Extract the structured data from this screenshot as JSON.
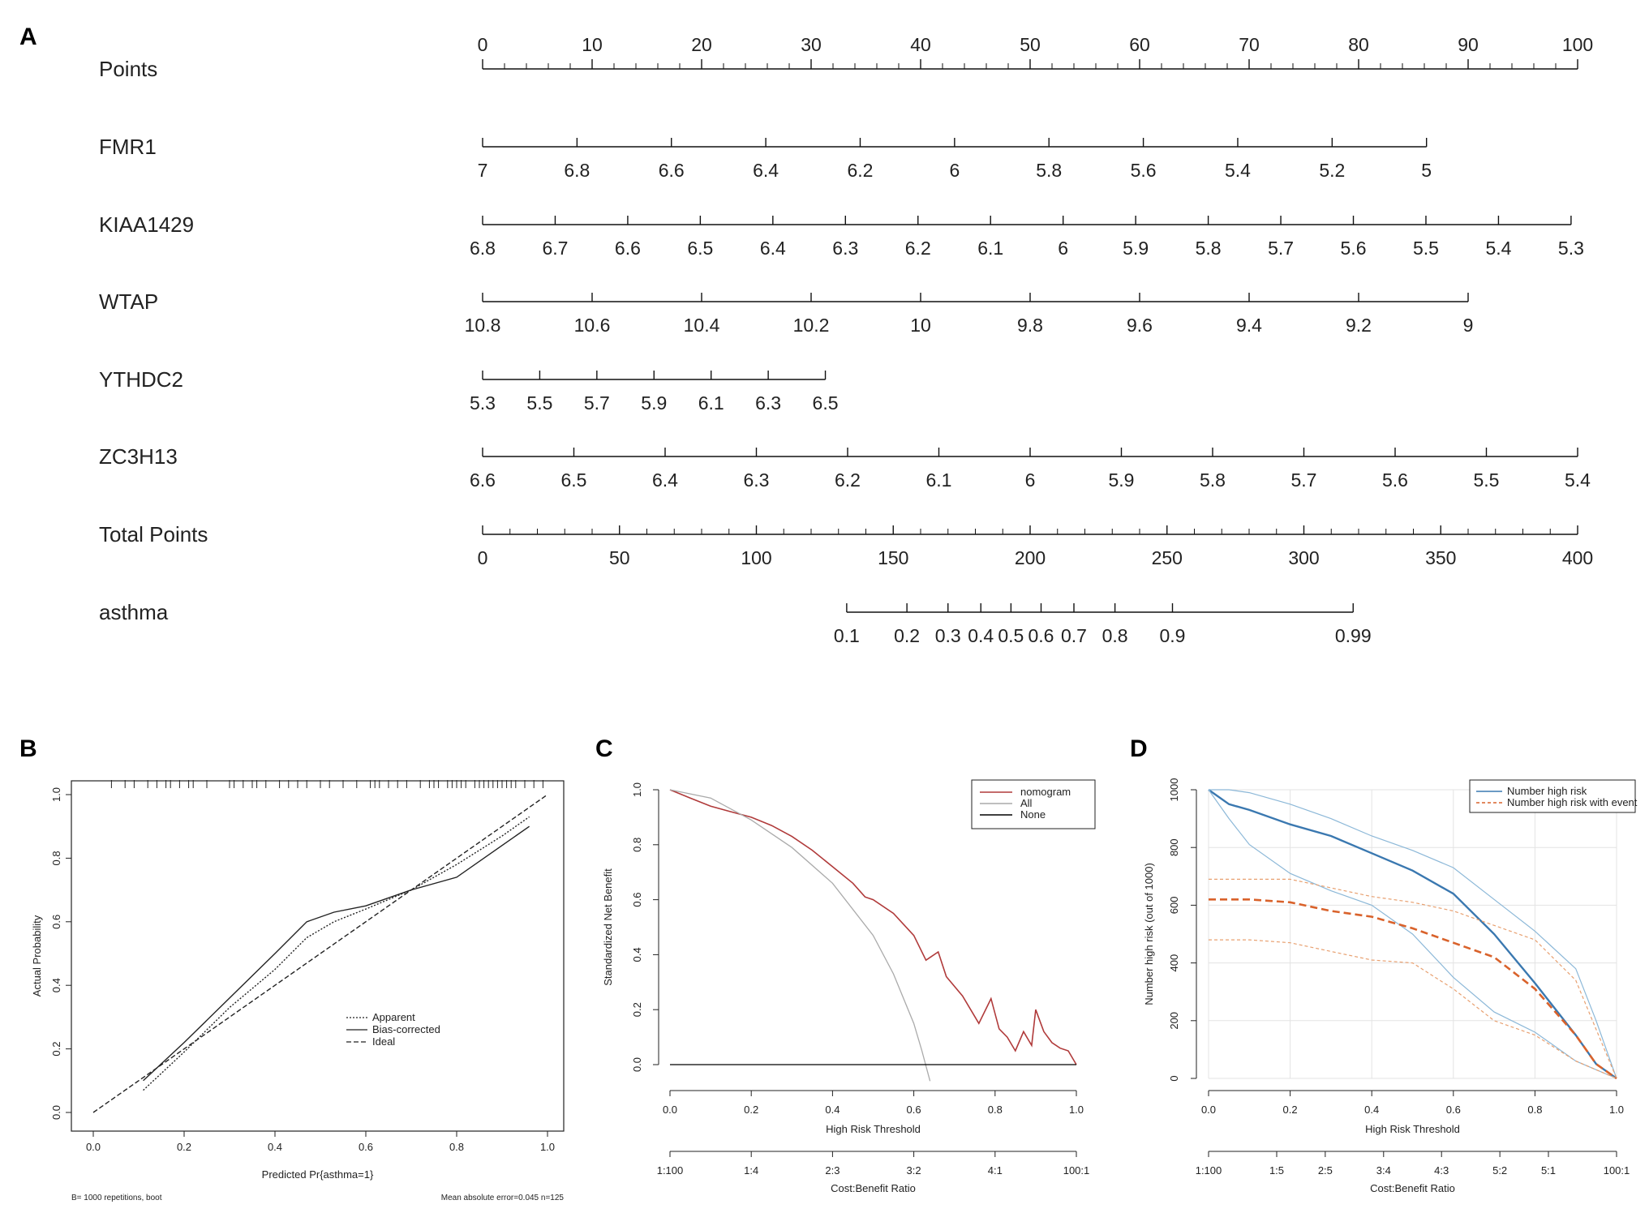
{
  "panels": {
    "a": "A",
    "b": "B",
    "c": "C",
    "d": "D"
  },
  "chart_data": [
    {
      "type": "nomogram",
      "panel": "A",
      "rows": [
        {
          "label": "Points",
          "ticks": [
            "0",
            "10",
            "20",
            "30",
            "40",
            "50",
            "60",
            "70",
            "80",
            "90",
            "100"
          ],
          "minor": true
        },
        {
          "label": "FMR1",
          "ticks": [
            "7",
            "6.8",
            "6.6",
            "6.4",
            "6.2",
            "6",
            "5.8",
            "5.6",
            "5.4",
            "5.2",
            "5"
          ],
          "points_range": [
            0,
            86.2
          ]
        },
        {
          "label": "KIAA1429",
          "ticks": [
            "6.8",
            "6.7",
            "6.6",
            "6.5",
            "6.4",
            "6.3",
            "6.2",
            "6.1",
            "6",
            "5.9",
            "5.8",
            "5.7",
            "5.6",
            "5.5",
            "5.4",
            "5.3"
          ],
          "points_range": [
            0,
            99.4
          ]
        },
        {
          "label": "WTAP",
          "ticks": [
            "10.8",
            "10.6",
            "10.4",
            "10.2",
            "10",
            "9.8",
            "9.6",
            "9.4",
            "9.2",
            "9"
          ],
          "points_range": [
            0,
            90
          ]
        },
        {
          "label": "YTHDC2",
          "ticks": [
            "5.3",
            "5.5",
            "5.7",
            "5.9",
            "6.1",
            "6.3",
            "6.5"
          ],
          "points_range": [
            0,
            31.3
          ]
        },
        {
          "label": "ZC3H13",
          "ticks": [
            "6.6",
            "6.5",
            "6.4",
            "6.3",
            "6.2",
            "6.1",
            "6",
            "5.9",
            "5.8",
            "5.7",
            "5.6",
            "5.5",
            "5.4"
          ],
          "points_range": [
            0,
            100
          ]
        },
        {
          "label": "Total Points",
          "ticks": [
            "0",
            "50",
            "100",
            "150",
            "200",
            "250",
            "300",
            "350",
            "400"
          ],
          "range": [
            0,
            400
          ]
        },
        {
          "label": "asthma",
          "ticks": [
            "0.1",
            "0.2",
            "0.3",
            "0.4",
            "0.5",
            "0.6",
            "0.7",
            "0.8",
            "0.9",
            "0.99"
          ],
          "total_points": [
            133,
            155,
            170,
            182,
            193,
            204,
            216,
            231,
            252,
            318
          ]
        }
      ]
    },
    {
      "type": "line",
      "panel": "B",
      "xlabel": "Predicted Pr{asthma=1}",
      "ylabel": "Actual Probability",
      "xlim": [
        0,
        1
      ],
      "ylim": [
        0,
        1
      ],
      "xticks": [
        "0.0",
        "0.2",
        "0.4",
        "0.6",
        "0.8",
        "1.0"
      ],
      "yticks": [
        "0.0",
        "0.2",
        "0.4",
        "0.6",
        "0.8",
        "1.0"
      ],
      "legend": [
        "Apparent",
        "Bias-corrected",
        "Ideal"
      ],
      "series": [
        {
          "name": "Apparent",
          "x": [
            0.11,
            0.2,
            0.3,
            0.4,
            0.47,
            0.53,
            0.6,
            0.7,
            0.8,
            0.9,
            0.96
          ],
          "y": [
            0.07,
            0.19,
            0.33,
            0.45,
            0.55,
            0.6,
            0.64,
            0.7,
            0.78,
            0.87,
            0.93
          ]
        },
        {
          "name": "Bias-corrected",
          "x": [
            0.11,
            0.2,
            0.3,
            0.4,
            0.47,
            0.53,
            0.6,
            0.7,
            0.8,
            0.9,
            0.96
          ],
          "y": [
            0.1,
            0.22,
            0.36,
            0.5,
            0.6,
            0.63,
            0.65,
            0.7,
            0.74,
            0.84,
            0.9
          ]
        },
        {
          "name": "Ideal",
          "x": [
            0,
            1
          ],
          "y": [
            0,
            1
          ]
        }
      ],
      "footnote_left": "B= 1000 repetitions, boot",
      "footnote_right": "Mean absolute error=0.045 n=125"
    },
    {
      "type": "line",
      "panel": "C",
      "xlabel": "High Risk Threshold",
      "ylabel": "Standardized Net Benefit",
      "xlim": [
        0,
        1
      ],
      "ylim": [
        0,
        1
      ],
      "xticks": [
        "0.0",
        "0.2",
        "0.4",
        "0.6",
        "0.8",
        "1.0"
      ],
      "yticks": [
        "0.0",
        "0.2",
        "0.4",
        "0.6",
        "0.8",
        "1.0"
      ],
      "x2label": "Cost:Benefit Ratio",
      "x2ticks": [
        "1:100",
        "1:4",
        "2:3",
        "3:2",
        "4:1",
        "100:1"
      ],
      "legend": [
        "nomogram",
        "All",
        "None"
      ],
      "series": [
        {
          "name": "nomogram",
          "color": "#b03a3a",
          "x": [
            0,
            0.05,
            0.1,
            0.15,
            0.2,
            0.25,
            0.3,
            0.35,
            0.4,
            0.45,
            0.48,
            0.5,
            0.55,
            0.6,
            0.63,
            0.66,
            0.68,
            0.72,
            0.76,
            0.79,
            0.81,
            0.83,
            0.85,
            0.87,
            0.89,
            0.9,
            0.92,
            0.94,
            0.96,
            0.98,
            1.0
          ],
          "y": [
            1.0,
            0.97,
            0.94,
            0.92,
            0.9,
            0.87,
            0.83,
            0.78,
            0.72,
            0.66,
            0.61,
            0.6,
            0.55,
            0.47,
            0.38,
            0.41,
            0.32,
            0.25,
            0.15,
            0.24,
            0.13,
            0.1,
            0.05,
            0.12,
            0.07,
            0.2,
            0.12,
            0.08,
            0.06,
            0.05,
            0.0
          ]
        },
        {
          "name": "All",
          "color": "#aaaaaa",
          "x": [
            0,
            0.1,
            0.2,
            0.3,
            0.4,
            0.5,
            0.55,
            0.6,
            0.62,
            0.64
          ],
          "y": [
            1.0,
            0.97,
            0.89,
            0.79,
            0.66,
            0.47,
            0.33,
            0.15,
            0.05,
            -0.06
          ]
        },
        {
          "name": "None",
          "color": "#000000",
          "x": [
            0,
            1
          ],
          "y": [
            0,
            0
          ]
        }
      ]
    },
    {
      "type": "line",
      "panel": "D",
      "xlabel": "High Risk Threshold",
      "ylabel": "Number high risk (out of 1000)",
      "xlim": [
        0,
        1
      ],
      "ylim": [
        0,
        1000
      ],
      "xticks": [
        "0.0",
        "0.2",
        "0.4",
        "0.6",
        "0.8",
        "1.0"
      ],
      "yticks": [
        "0",
        "200",
        "400",
        "600",
        "800",
        "1000"
      ],
      "x2label": "Cost:Benefit Ratio",
      "x2ticks": [
        "1:100",
        "1:5",
        "2:5",
        "3:4",
        "4:3",
        "5:2",
        "5:1",
        "100:1"
      ],
      "legend": [
        "Number high risk",
        "Number high risk with event"
      ],
      "series": [
        {
          "name": "Number high risk",
          "color": "#3a78b0",
          "width": 2.4,
          "x": [
            0,
            0.05,
            0.1,
            0.2,
            0.3,
            0.4,
            0.5,
            0.6,
            0.7,
            0.8,
            0.9,
            0.95,
            1.0
          ],
          "y": [
            1000,
            950,
            930,
            880,
            840,
            780,
            720,
            640,
            500,
            330,
            150,
            50,
            0
          ]
        },
        {
          "name": "Number high risk upper",
          "color": "#8cb8d8",
          "width": 1.2,
          "x": [
            0,
            0.05,
            0.1,
            0.2,
            0.3,
            0.4,
            0.5,
            0.6,
            0.7,
            0.8,
            0.9,
            0.95,
            1.0
          ],
          "y": [
            1000,
            1000,
            990,
            950,
            900,
            840,
            790,
            730,
            620,
            510,
            380,
            200,
            0
          ]
        },
        {
          "name": "Number high risk lower",
          "color": "#8cb8d8",
          "width": 1.2,
          "x": [
            0,
            0.05,
            0.1,
            0.2,
            0.3,
            0.4,
            0.5,
            0.6,
            0.7,
            0.8,
            0.9,
            0.95,
            1.0
          ],
          "y": [
            1000,
            900,
            810,
            710,
            650,
            600,
            500,
            350,
            230,
            160,
            60,
            30,
            0
          ]
        },
        {
          "name": "Number high risk with event",
          "color": "#d9622b",
          "width": 2.6,
          "dash": "9,5",
          "x": [
            0,
            0.1,
            0.2,
            0.3,
            0.4,
            0.5,
            0.6,
            0.7,
            0.8,
            0.9,
            0.95,
            1.0
          ],
          "y": [
            620,
            620,
            610,
            580,
            560,
            520,
            470,
            420,
            310,
            150,
            50,
            0
          ]
        },
        {
          "name": "Number high risk with event upper",
          "color": "#e8a070",
          "width": 1.2,
          "dash": "4,3",
          "x": [
            0,
            0.1,
            0.2,
            0.3,
            0.4,
            0.5,
            0.6,
            0.7,
            0.8,
            0.9,
            0.95,
            1.0
          ],
          "y": [
            690,
            690,
            690,
            660,
            630,
            610,
            580,
            530,
            480,
            340,
            170,
            0
          ]
        },
        {
          "name": "Number high risk with event lower",
          "color": "#e8a070",
          "width": 1.2,
          "dash": "4,3",
          "x": [
            0,
            0.1,
            0.2,
            0.3,
            0.4,
            0.5,
            0.6,
            0.7,
            0.8,
            0.9,
            0.95,
            1.0
          ],
          "y": [
            480,
            480,
            470,
            440,
            410,
            400,
            310,
            200,
            150,
            60,
            30,
            0
          ]
        }
      ]
    }
  ]
}
